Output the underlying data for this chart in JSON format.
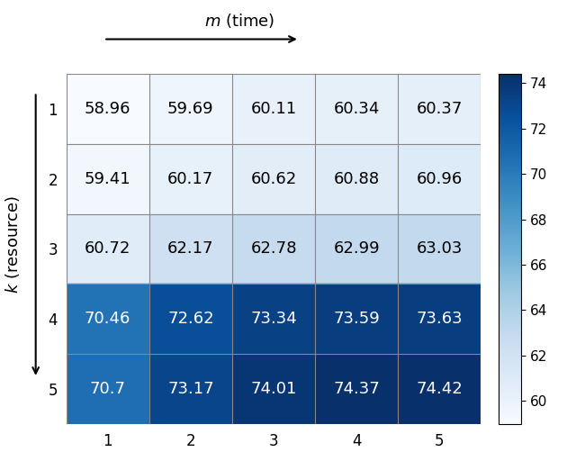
{
  "values": [
    [
      58.96,
      59.69,
      60.11,
      60.34,
      60.37
    ],
    [
      59.41,
      60.17,
      60.62,
      60.88,
      60.96
    ],
    [
      60.72,
      62.17,
      62.78,
      62.99,
      63.03
    ],
    [
      70.46,
      72.62,
      73.34,
      73.59,
      73.63
    ],
    [
      70.7,
      73.17,
      74.01,
      74.37,
      74.42
    ]
  ],
  "row_labels": [
    "1",
    "2",
    "3",
    "4",
    "5"
  ],
  "col_labels": [
    "1",
    "2",
    "3",
    "4",
    "5"
  ],
  "xlabel": "m (time)",
  "ylabel": "k (resource)",
  "cmap": "Blues",
  "vmin": 58.96,
  "vmax": 74.42,
  "colorbar_ticks": [
    60,
    62,
    64,
    66,
    68,
    70,
    72,
    74
  ],
  "colorbar_ticklabels": [
    "60",
    "62",
    "64",
    "66",
    "68",
    "70",
    "72",
    "74"
  ],
  "grid_color": "#888888",
  "text_dark": "#000000",
  "text_light": "#ffffff",
  "text_threshold": 65.0,
  "cell_fontsize": 13,
  "label_fontsize": 13,
  "tick_fontsize": 12,
  "colorbar_fontsize": 11
}
